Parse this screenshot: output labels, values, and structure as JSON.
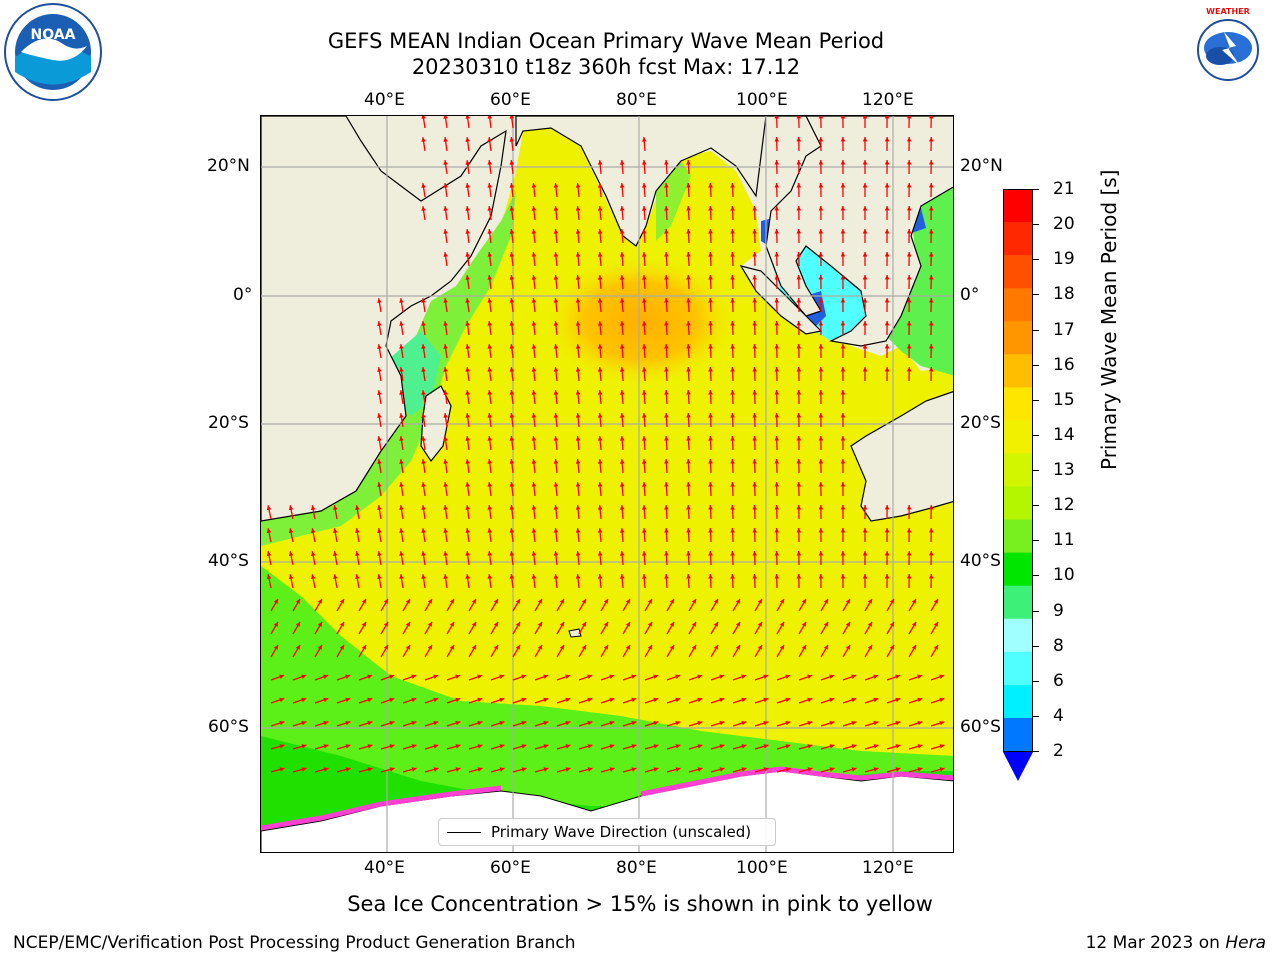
{
  "title": {
    "line1": "GEFS MEAN Indian Ocean Primary Wave Mean Period",
    "line2": "20230310 t18z 360h fcst   Max: 17.12"
  },
  "logos": {
    "noaa_text": "NOAA",
    "noaa_ring_text": "NATIONAL OCEANIC AND ATMOSPHERIC ADMINISTRATION · U.S. DEPARTMENT OF COMMERCE",
    "nws_ring_text": "NATIONAL WEATHER SERVICE"
  },
  "axes": {
    "top_lon_labels": [
      "40°E",
      "60°E",
      "80°E",
      "100°E",
      "120°E"
    ],
    "bottom_lon_labels": [
      "40°E",
      "60°E",
      "80°E",
      "100°E",
      "120°E"
    ],
    "left_lat_labels": [
      "20°N",
      "0°",
      "20°S",
      "40°S",
      "60°S"
    ],
    "right_lat_labels": [
      "20°N",
      "0°",
      "20°S",
      "40°S",
      "60°S"
    ]
  },
  "legend": {
    "label": "Primary Wave Direction (unscaled)"
  },
  "colorbar": {
    "label": "Primary Wave Mean Period [s]",
    "ticks": [
      "21",
      "20",
      "19",
      "18",
      "17",
      "16",
      "15",
      "14",
      "13",
      "12",
      "11",
      "10",
      "9",
      "8",
      "6",
      "4",
      "2"
    ],
    "colors": [
      "#ff0000",
      "#ff2800",
      "#ff5000",
      "#ff7800",
      "#ff9600",
      "#ffbe00",
      "#ffe600",
      "#f0f000",
      "#d2f500",
      "#b4f500",
      "#78f020",
      "#00e600",
      "#3cf078",
      "#a0ffff",
      "#50ffff",
      "#00f0ff",
      "#0078ff"
    ],
    "extend_color": "#0000ff"
  },
  "colors": {
    "land": "#efeedd",
    "ocean_main": "#eef200",
    "arrow": "#ff0000"
  },
  "notes": {
    "sea_ice": "Sea Ice Concentration > 15% is shown in pink to yellow"
  },
  "footer": {
    "left": "NCEP/EMC/Verification Post Processing Product Generation Branch",
    "right_prefix": "12 Mar 2023 on ",
    "right_host": "Hera"
  }
}
